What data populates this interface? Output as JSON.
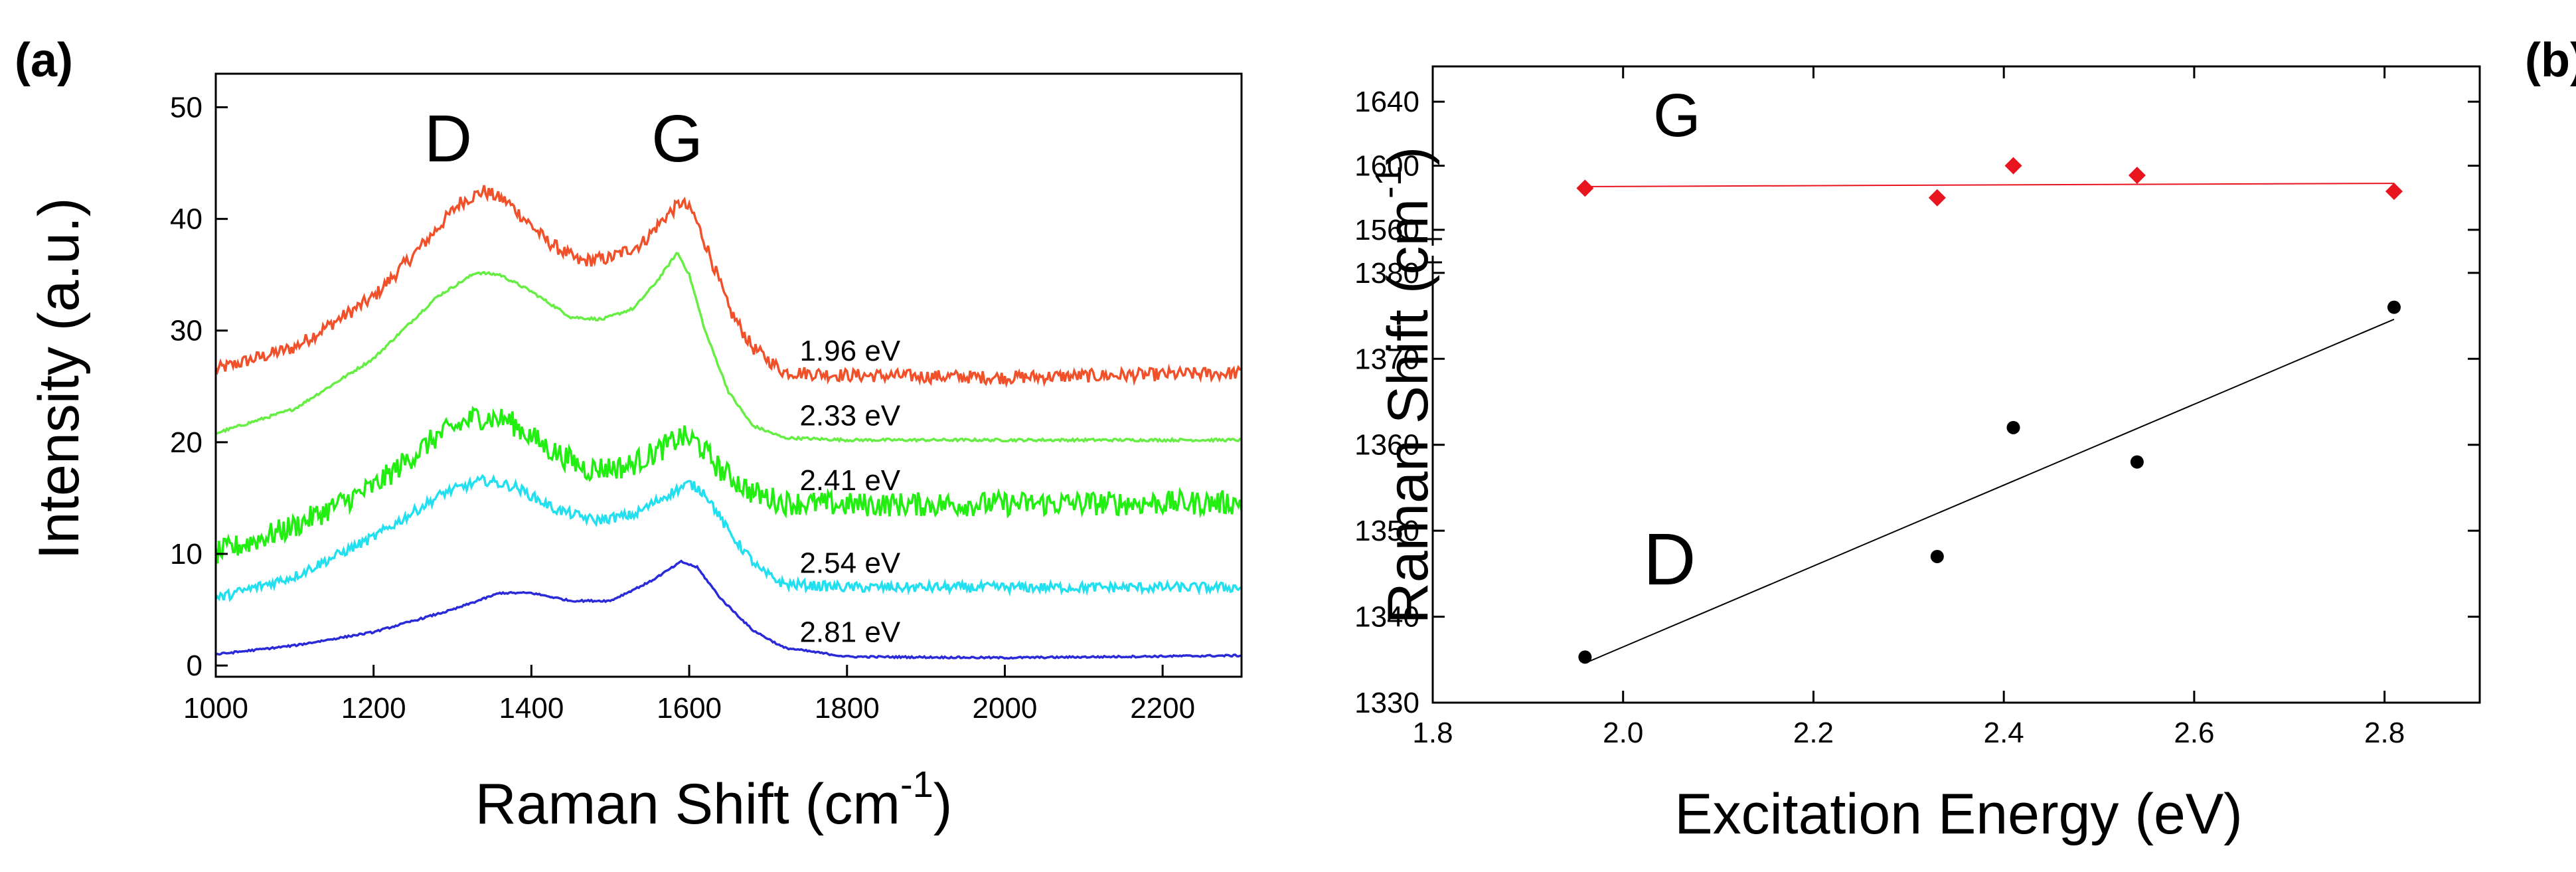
{
  "chart_data": [
    {
      "panel": "(a)",
      "type": "line",
      "xlabel": "Raman Shift (cm",
      "xlabel_sup": "-1",
      "xlabel_end": ")",
      "ylabel": "Intensity (a.u.)",
      "xlim": [
        1000,
        2300
      ],
      "ylim": [
        -1,
        53
      ],
      "xticks": [
        "1000",
        "1200",
        "1400",
        "1600",
        "1800",
        "2000",
        "2200"
      ],
      "yticks": [
        "0",
        "10",
        "20",
        "30",
        "40",
        "50"
      ],
      "annotations": {
        "d_peak": "D",
        "g_peak": "G"
      },
      "series": [
        {
          "name": "1.96 eV",
          "color": "#f0502a",
          "noise": 0.6,
          "points": [
            [
              1000,
              26.5
            ],
            [
              1100,
              28.5
            ],
            [
              1200,
              33
            ],
            [
              1260,
              37.5
            ],
            [
              1310,
              41.5
            ],
            [
              1340,
              42.5
            ],
            [
              1370,
              41.5
            ],
            [
              1420,
              38
            ],
            [
              1460,
              36.2
            ],
            [
              1500,
              36.5
            ],
            [
              1540,
              37.8
            ],
            [
              1570,
              40.2
            ],
            [
              1590,
              41.5
            ],
            [
              1605,
              40.5
            ],
            [
              1625,
              37
            ],
            [
              1650,
              32
            ],
            [
              1680,
              28.5
            ],
            [
              1720,
              26.3
            ],
            [
              1800,
              26
            ],
            [
              2000,
              25.8
            ],
            [
              2300,
              26.2
            ]
          ]
        },
        {
          "name": "2.33 eV",
          "color": "#66ee44",
          "noise": 0.12,
          "points": [
            [
              1000,
              20.8
            ],
            [
              1100,
              23
            ],
            [
              1200,
              27.5
            ],
            [
              1280,
              33
            ],
            [
              1330,
              35.2
            ],
            [
              1360,
              35
            ],
            [
              1400,
              33.5
            ],
            [
              1450,
              31.2
            ],
            [
              1490,
              31
            ],
            [
              1530,
              32
            ],
            [
              1560,
              34.5
            ],
            [
              1585,
              37
            ],
            [
              1600,
              35
            ],
            [
              1620,
              30
            ],
            [
              1650,
              24.5
            ],
            [
              1680,
              21.5
            ],
            [
              1720,
              20.4
            ],
            [
              1800,
              20.2
            ],
            [
              2300,
              20.2
            ]
          ]
        },
        {
          "name": "2.41 eV",
          "color": "#22ee11",
          "noise": 1.1,
          "points": [
            [
              1000,
              10
            ],
            [
              1100,
              12.5
            ],
            [
              1200,
              16
            ],
            [
              1280,
              20.5
            ],
            [
              1330,
              22.3
            ],
            [
              1370,
              22
            ],
            [
              1420,
              19.5
            ],
            [
              1470,
              17.6
            ],
            [
              1520,
              17.8
            ],
            [
              1560,
              19.2
            ],
            [
              1590,
              20.5
            ],
            [
              1610,
              20
            ],
            [
              1640,
              17.5
            ],
            [
              1680,
              15.5
            ],
            [
              1720,
              14.6
            ],
            [
              1800,
              14.4
            ],
            [
              2300,
              14.6
            ]
          ]
        },
        {
          "name": "2.54 eV",
          "color": "#22e0f0",
          "noise": 0.45,
          "points": [
            [
              1000,
              6
            ],
            [
              1100,
              8
            ],
            [
              1200,
              11.5
            ],
            [
              1290,
              15.5
            ],
            [
              1340,
              16.6
            ],
            [
              1380,
              16
            ],
            [
              1430,
              14
            ],
            [
              1480,
              13
            ],
            [
              1530,
              13.5
            ],
            [
              1570,
              15.2
            ],
            [
              1600,
              16.3
            ],
            [
              1620,
              15.5
            ],
            [
              1650,
              12
            ],
            [
              1690,
              8.5
            ],
            [
              1720,
              7.3
            ],
            [
              1800,
              7
            ],
            [
              2300,
              7
            ]
          ]
        },
        {
          "name": "2.81 eV",
          "color": "#2a2ad8",
          "noise": 0.08,
          "points": [
            [
              1000,
              1
            ],
            [
              1100,
              1.8
            ],
            [
              1200,
              3
            ],
            [
              1300,
              5
            ],
            [
              1360,
              6.5
            ],
            [
              1400,
              6.5
            ],
            [
              1450,
              5.8
            ],
            [
              1500,
              5.8
            ],
            [
              1550,
              7.5
            ],
            [
              1590,
              9.3
            ],
            [
              1610,
              8.8
            ],
            [
              1640,
              6
            ],
            [
              1680,
              3.2
            ],
            [
              1720,
              1.6
            ],
            [
              1800,
              0.8
            ],
            [
              2000,
              0.7
            ],
            [
              2300,
              0.9
            ]
          ]
        }
      ]
    },
    {
      "panel": "(b)",
      "type": "scatter",
      "xlabel": "Excitation Energy (eV)",
      "ylabel": "Raman Shift (cm",
      "ylabel_sup": "-1",
      "ylabel_end": ")",
      "xlim": [
        1.8,
        2.9
      ],
      "xticks": [
        "1.8",
        "2.0",
        "2.2",
        "2.4",
        "2.6",
        "2.8"
      ],
      "g_panel": {
        "label": "G",
        "ylim": [
          1548,
          1662
        ],
        "yticks": [
          "1560",
          "1600",
          "1640"
        ],
        "color": "#e8141e",
        "x": [
          1.96,
          2.33,
          2.41,
          2.54,
          2.81
        ],
        "y": [
          1586,
          1580,
          1600,
          1594,
          1584
        ],
        "fit": [
          [
            1.96,
            1587
          ],
          [
            2.81,
            1589
          ]
        ]
      },
      "d_panel": {
        "label": "D",
        "ylim": [
          1330,
          1382
        ],
        "yticks": [
          "1330",
          "1340",
          "1350",
          "1360",
          "1370",
          "1380"
        ],
        "color": "#000000",
        "x": [
          1.96,
          2.33,
          2.41,
          2.54,
          2.81
        ],
        "y": [
          1335.3,
          1347,
          1362,
          1358,
          1376
        ],
        "fit": [
          [
            1.96,
            1334.6
          ],
          [
            2.81,
            1374.6
          ]
        ]
      }
    }
  ]
}
